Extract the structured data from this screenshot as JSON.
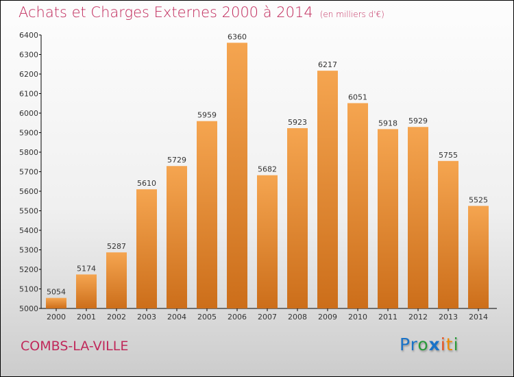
{
  "chart_data": {
    "type": "bar",
    "title": "Achats et Charges Externes 2000 à 2014",
    "unit": "(en milliers d'€)",
    "categories": [
      "2000",
      "2001",
      "2002",
      "2003",
      "2004",
      "2005",
      "2006",
      "2007",
      "2008",
      "2009",
      "2010",
      "2011",
      "2012",
      "2013",
      "2014"
    ],
    "values": [
      5054,
      5174,
      5287,
      5610,
      5729,
      5959,
      6360,
      5682,
      5923,
      6217,
      6051,
      5918,
      5929,
      5755,
      5525
    ],
    "ylim": [
      5000,
      6400
    ],
    "yticks": [
      5000,
      5100,
      5200,
      5300,
      5400,
      5500,
      5600,
      5700,
      5800,
      5900,
      6000,
      6100,
      6200,
      6300,
      6400
    ],
    "xlabel": "",
    "ylabel": "",
    "bar_color_top": "#f5a550",
    "bar_color_bottom": "#cc6e1a"
  },
  "footer": {
    "city": "COMBS-LA-VILLE",
    "logo": "Proxiti"
  }
}
